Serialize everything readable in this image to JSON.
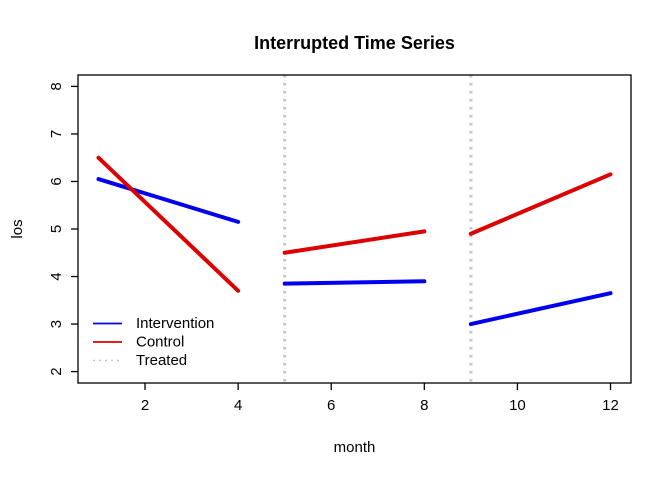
{
  "chart_data": {
    "type": "line",
    "title": "Interrupted Time Series",
    "xlabel": "month",
    "ylabel": "los",
    "xlim": [
      0.56,
      12.44
    ],
    "ylim": [
      1.76,
      8.24
    ],
    "x_ticks": [
      2,
      4,
      6,
      8,
      10,
      12
    ],
    "y_ticks": [
      2,
      3,
      4,
      5,
      6,
      7,
      8
    ],
    "grid": false,
    "series": [
      {
        "name": "Intervention",
        "color": "#0000EE",
        "style": "solid",
        "segments": [
          [
            1,
            6.05,
            4,
            5.15
          ],
          [
            5,
            3.85,
            8,
            3.9
          ],
          [
            9,
            3.0,
            12,
            3.65
          ]
        ]
      },
      {
        "name": "Control",
        "color": "#DD0000",
        "style": "solid",
        "segments": [
          [
            1,
            6.5,
            4,
            3.7
          ],
          [
            5,
            4.5,
            8,
            4.95
          ],
          [
            9,
            4.9,
            12,
            6.15
          ]
        ]
      }
    ],
    "treated": {
      "name": "Treated",
      "color": "#C6C6C6",
      "style": "dotted",
      "x_positions": [
        5,
        9
      ]
    },
    "legend": {
      "position": "bottom-left",
      "entries": [
        {
          "label": "Intervention",
          "color": "#0000EE",
          "style": "solid"
        },
        {
          "label": "Control",
          "color": "#DD0000",
          "style": "solid"
        },
        {
          "label": "Treated",
          "color": "#C6C6C6",
          "style": "dotted"
        }
      ]
    }
  }
}
